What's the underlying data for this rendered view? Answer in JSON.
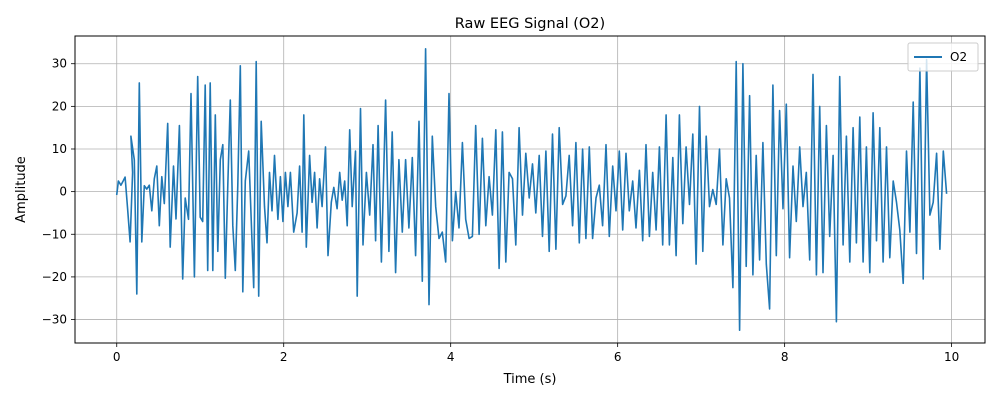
{
  "chart_data": {
    "type": "line",
    "title": "Raw EEG Signal (O2)",
    "xlabel": "Time (s)",
    "ylabel": "Amplitude",
    "xlim": [
      -0.5,
      10.4
    ],
    "ylim": [
      -35.5,
      36.5
    ],
    "x_ticks": [
      0,
      2,
      4,
      6,
      8,
      10
    ],
    "y_ticks": [
      -30,
      -20,
      -10,
      0,
      10,
      20,
      30
    ],
    "grid": true,
    "legend_position": "top-right",
    "series": [
      {
        "name": "O2",
        "color": "#1f77b4",
        "points": [
          [
            0.0,
            -0.8
          ],
          [
            0.02,
            2.5
          ],
          [
            0.05,
            1.5
          ],
          [
            0.08,
            2.6
          ],
          [
            0.1,
            3.4
          ],
          [
            0.13,
            -4.0
          ],
          [
            0.16,
            -11.8
          ],
          [
            0.19,
            4.5
          ],
          [
            0.17,
            13.0
          ],
          [
            0.21,
            7.5
          ],
          [
            0.24,
            -24.0
          ],
          [
            0.27,
            25.5
          ],
          [
            0.3,
            -11.8
          ],
          [
            0.33,
            1.4
          ],
          [
            0.36,
            0.6
          ],
          [
            0.39,
            1.5
          ],
          [
            0.42,
            -4.5
          ],
          [
            0.45,
            3.0
          ],
          [
            0.48,
            6.0
          ],
          [
            0.51,
            -8.0
          ],
          [
            0.54,
            3.5
          ],
          [
            0.57,
            -2.8
          ],
          [
            0.61,
            16.0
          ],
          [
            0.64,
            -13.0
          ],
          [
            0.68,
            6.0
          ],
          [
            0.71,
            -6.4
          ],
          [
            0.75,
            15.5
          ],
          [
            0.79,
            -20.5
          ],
          [
            0.82,
            -1.5
          ],
          [
            0.86,
            -6.5
          ],
          [
            0.89,
            23.0
          ],
          [
            0.93,
            -20.0
          ],
          [
            0.97,
            27.0
          ],
          [
            1.0,
            -6.0
          ],
          [
            1.03,
            -7.0
          ],
          [
            1.06,
            25.0
          ],
          [
            1.09,
            -18.5
          ],
          [
            1.12,
            25.5
          ],
          [
            1.15,
            -18.5
          ],
          [
            1.18,
            18.0
          ],
          [
            1.21,
            -14.0
          ],
          [
            1.24,
            7.5
          ],
          [
            1.27,
            11.0
          ],
          [
            1.3,
            -20.3
          ],
          [
            1.33,
            1.5
          ],
          [
            1.36,
            21.5
          ],
          [
            1.39,
            -8.0
          ],
          [
            1.42,
            -18.5
          ],
          [
            1.45,
            1.5
          ],
          [
            1.48,
            29.5
          ],
          [
            1.51,
            -23.5
          ],
          [
            1.54,
            2.5
          ],
          [
            1.58,
            9.5
          ],
          [
            1.61,
            -6.5
          ],
          [
            1.64,
            -22.5
          ],
          [
            1.67,
            30.5
          ],
          [
            1.7,
            -24.5
          ],
          [
            1.73,
            16.5
          ],
          [
            1.77,
            -3.5
          ],
          [
            1.8,
            -12.0
          ],
          [
            1.83,
            4.5
          ],
          [
            1.86,
            -4.5
          ],
          [
            1.89,
            8.5
          ],
          [
            1.93,
            -6.5
          ],
          [
            1.96,
            3.5
          ],
          [
            1.99,
            -7.0
          ],
          [
            2.02,
            4.5
          ],
          [
            2.05,
            -3.5
          ],
          [
            2.08,
            4.5
          ],
          [
            2.12,
            -9.5
          ],
          [
            2.16,
            -5.0
          ],
          [
            2.19,
            6.0
          ],
          [
            2.22,
            -9.5
          ],
          [
            2.24,
            18.0
          ],
          [
            2.27,
            -13.0
          ],
          [
            2.31,
            8.5
          ],
          [
            2.34,
            -2.5
          ],
          [
            2.37,
            4.5
          ],
          [
            2.4,
            -8.5
          ],
          [
            2.43,
            3.0
          ],
          [
            2.46,
            -3.5
          ],
          [
            2.5,
            10.5
          ],
          [
            2.53,
            -15.0
          ],
          [
            2.57,
            -2.5
          ],
          [
            2.6,
            1.0
          ],
          [
            2.64,
            -4.0
          ],
          [
            2.67,
            4.5
          ],
          [
            2.7,
            -2.0
          ],
          [
            2.73,
            2.5
          ],
          [
            2.76,
            -8.0
          ],
          [
            2.79,
            14.5
          ],
          [
            2.82,
            -3.5
          ],
          [
            2.86,
            9.5
          ],
          [
            2.88,
            -24.5
          ],
          [
            2.92,
            19.5
          ],
          [
            2.95,
            -12.5
          ],
          [
            2.99,
            4.5
          ],
          [
            3.03,
            -5.5
          ],
          [
            3.07,
            11.0
          ],
          [
            3.1,
            -11.5
          ],
          [
            3.13,
            15.5
          ],
          [
            3.17,
            -16.5
          ],
          [
            3.22,
            21.5
          ],
          [
            3.26,
            -14.0
          ],
          [
            3.3,
            14.0
          ],
          [
            3.34,
            -19.0
          ],
          [
            3.38,
            7.5
          ],
          [
            3.42,
            -9.5
          ],
          [
            3.46,
            7.5
          ],
          [
            3.5,
            -8.5
          ],
          [
            3.54,
            8.0
          ],
          [
            3.58,
            -15.0
          ],
          [
            3.62,
            16.5
          ],
          [
            3.66,
            -21.0
          ],
          [
            3.7,
            33.5
          ],
          [
            3.74,
            -26.5
          ],
          [
            3.78,
            13.0
          ],
          [
            3.82,
            -3.5
          ],
          [
            3.86,
            -11.0
          ],
          [
            3.9,
            -9.5
          ],
          [
            3.94,
            -16.5
          ],
          [
            3.98,
            23.0
          ],
          [
            4.02,
            -11.5
          ],
          [
            4.06,
            0.0
          ],
          [
            4.1,
            -8.5
          ],
          [
            4.14,
            11.5
          ],
          [
            4.18,
            -6.5
          ],
          [
            4.22,
            -11.0
          ],
          [
            4.26,
            -10.5
          ],
          [
            4.3,
            15.5
          ],
          [
            4.34,
            -10.0
          ],
          [
            4.38,
            12.5
          ],
          [
            4.42,
            -8.0
          ],
          [
            4.46,
            3.5
          ],
          [
            4.5,
            -5.5
          ],
          [
            4.54,
            14.5
          ],
          [
            4.58,
            -18.0
          ],
          [
            4.62,
            14.0
          ],
          [
            4.66,
            -16.5
          ],
          [
            4.7,
            4.5
          ],
          [
            4.74,
            3.0
          ],
          [
            4.78,
            -12.5
          ],
          [
            4.82,
            15.0
          ],
          [
            4.86,
            -5.5
          ],
          [
            4.9,
            9.0
          ],
          [
            4.94,
            -1.5
          ],
          [
            4.98,
            6.5
          ],
          [
            5.02,
            -5.0
          ],
          [
            5.06,
            8.5
          ],
          [
            5.1,
            -10.5
          ],
          [
            5.14,
            9.5
          ],
          [
            5.18,
            -14.0
          ],
          [
            5.22,
            13.5
          ],
          [
            5.26,
            -13.5
          ],
          [
            5.3,
            15.0
          ],
          [
            5.34,
            -3.0
          ],
          [
            5.38,
            -1.0
          ],
          [
            5.42,
            8.5
          ],
          [
            5.46,
            -8.0
          ],
          [
            5.5,
            11.5
          ],
          [
            5.54,
            -12.0
          ],
          [
            5.58,
            10.0
          ],
          [
            5.62,
            -11.0
          ],
          [
            5.66,
            10.5
          ],
          [
            5.7,
            -11.0
          ],
          [
            5.74,
            -1.5
          ],
          [
            5.78,
            1.5
          ],
          [
            5.82,
            -8.0
          ],
          [
            5.86,
            11.0
          ],
          [
            5.9,
            -10.5
          ],
          [
            5.94,
            6.0
          ],
          [
            5.98,
            -4.5
          ],
          [
            6.02,
            9.5
          ],
          [
            6.06,
            -9.0
          ],
          [
            6.1,
            9.0
          ],
          [
            6.14,
            -4.5
          ],
          [
            6.18,
            2.5
          ],
          [
            6.22,
            -8.5
          ],
          [
            6.26,
            5.0
          ],
          [
            6.3,
            -11.5
          ],
          [
            6.34,
            11.0
          ],
          [
            6.38,
            -10.5
          ],
          [
            6.42,
            4.5
          ],
          [
            6.46,
            -9.0
          ],
          [
            6.5,
            10.5
          ],
          [
            6.54,
            -12.5
          ],
          [
            6.58,
            18.0
          ],
          [
            6.62,
            -12.5
          ],
          [
            6.66,
            8.0
          ],
          [
            6.7,
            -15.0
          ],
          [
            6.74,
            18.0
          ],
          [
            6.78,
            -7.5
          ],
          [
            6.82,
            10.5
          ],
          [
            6.86,
            -3.0
          ],
          [
            6.9,
            13.5
          ],
          [
            6.94,
            -17.0
          ],
          [
            6.98,
            20.0
          ],
          [
            7.02,
            -14.0
          ],
          [
            7.06,
            13.0
          ],
          [
            7.1,
            -3.5
          ],
          [
            7.14,
            0.5
          ],
          [
            7.18,
            -3.0
          ],
          [
            7.22,
            10.0
          ],
          [
            7.26,
            -12.5
          ],
          [
            7.3,
            3.0
          ],
          [
            7.34,
            -1.5
          ],
          [
            7.38,
            -22.5
          ],
          [
            7.42,
            30.5
          ],
          [
            7.46,
            -32.5
          ],
          [
            7.5,
            30.0
          ],
          [
            7.54,
            -17.5
          ],
          [
            7.58,
            22.5
          ],
          [
            7.62,
            -19.5
          ],
          [
            7.66,
            8.5
          ],
          [
            7.7,
            -16.0
          ],
          [
            7.74,
            11.5
          ],
          [
            7.78,
            -17.0
          ],
          [
            7.82,
            -27.5
          ],
          [
            7.86,
            25.0
          ],
          [
            7.9,
            -15.0
          ],
          [
            7.94,
            19.0
          ],
          [
            7.98,
            -4.0
          ],
          [
            8.02,
            20.5
          ],
          [
            8.06,
            -15.5
          ],
          [
            8.1,
            6.0
          ],
          [
            8.14,
            -7.0
          ],
          [
            8.18,
            10.5
          ],
          [
            8.22,
            -3.5
          ],
          [
            8.26,
            4.5
          ],
          [
            8.3,
            -16.0
          ],
          [
            8.34,
            27.5
          ],
          [
            8.38,
            -19.5
          ],
          [
            8.42,
            20.0
          ],
          [
            8.46,
            -19.0
          ],
          [
            8.5,
            15.5
          ],
          [
            8.54,
            -10.5
          ],
          [
            8.58,
            8.5
          ],
          [
            8.62,
            -30.5
          ],
          [
            8.66,
            27.0
          ],
          [
            8.7,
            -12.5
          ],
          [
            8.74,
            13.0
          ],
          [
            8.78,
            -16.5
          ],
          [
            8.82,
            15.0
          ],
          [
            8.86,
            -12.0
          ],
          [
            8.9,
            17.5
          ],
          [
            8.94,
            -16.5
          ],
          [
            8.98,
            10.5
          ],
          [
            9.02,
            -19.0
          ],
          [
            9.06,
            18.5
          ],
          [
            9.1,
            -11.5
          ],
          [
            9.14,
            15.0
          ],
          [
            9.18,
            -16.5
          ],
          [
            9.22,
            10.5
          ],
          [
            9.26,
            -15.5
          ],
          [
            9.3,
            2.5
          ],
          [
            9.34,
            -2.5
          ],
          [
            9.38,
            -9.0
          ],
          [
            9.42,
            -21.5
          ],
          [
            9.46,
            9.5
          ],
          [
            9.5,
            -9.5
          ],
          [
            9.54,
            21.0
          ],
          [
            9.58,
            -14.5
          ],
          [
            9.62,
            29.0
          ],
          [
            9.66,
            -20.5
          ],
          [
            9.7,
            31.0
          ],
          [
            9.74,
            -5.5
          ],
          [
            9.78,
            -2.5
          ],
          [
            9.82,
            9.0
          ],
          [
            9.86,
            -13.5
          ],
          [
            9.9,
            9.5
          ],
          [
            9.94,
            -0.5
          ]
        ]
      }
    ]
  }
}
